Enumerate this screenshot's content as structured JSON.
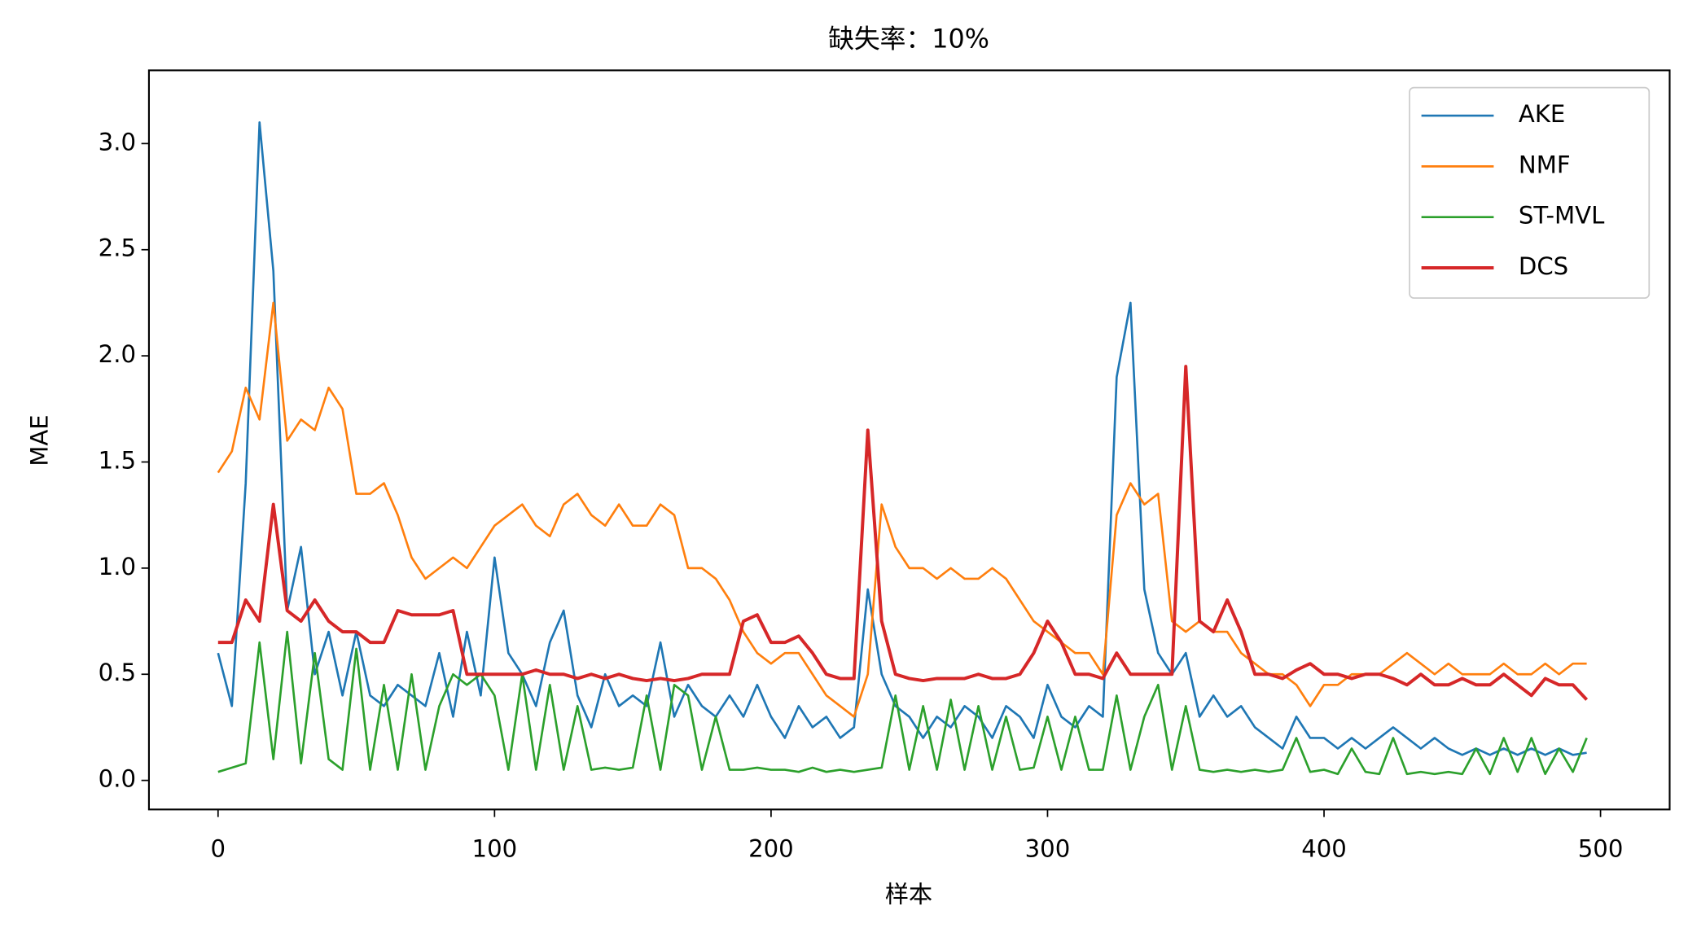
{
  "chart_data": {
    "type": "line",
    "title": "缺失率：10%",
    "x_label": "样本",
    "y_label": "MAE",
    "x": [
      0,
      5,
      10,
      15,
      20,
      25,
      30,
      35,
      40,
      45,
      50,
      55,
      60,
      65,
      70,
      75,
      80,
      85,
      90,
      95,
      100,
      105,
      110,
      115,
      120,
      125,
      130,
      135,
      140,
      145,
      150,
      155,
      160,
      165,
      170,
      175,
      180,
      185,
      190,
      195,
      200,
      205,
      210,
      215,
      220,
      225,
      230,
      235,
      240,
      245,
      250,
      255,
      260,
      265,
      270,
      275,
      280,
      285,
      290,
      295,
      300,
      305,
      310,
      315,
      320,
      325,
      330,
      335,
      340,
      345,
      350,
      355,
      360,
      365,
      370,
      375,
      380,
      385,
      390,
      395,
      400,
      405,
      410,
      415,
      420,
      425,
      430,
      435,
      440,
      445,
      450,
      455,
      460,
      465,
      470,
      475,
      480,
      485,
      490,
      495
    ],
    "series": [
      {
        "name": "AKE",
        "color": "#1f77b4",
        "linewidth": 2,
        "values": [
          0.6,
          0.35,
          1.4,
          3.1,
          2.4,
          0.8,
          1.1,
          0.5,
          0.7,
          0.4,
          0.7,
          0.4,
          0.35,
          0.45,
          0.4,
          0.35,
          0.6,
          0.3,
          0.7,
          0.4,
          1.05,
          0.6,
          0.5,
          0.35,
          0.65,
          0.8,
          0.4,
          0.25,
          0.5,
          0.35,
          0.4,
          0.35,
          0.65,
          0.3,
          0.45,
          0.35,
          0.3,
          0.4,
          0.3,
          0.45,
          0.3,
          0.2,
          0.35,
          0.25,
          0.3,
          0.2,
          0.25,
          0.9,
          0.5,
          0.35,
          0.3,
          0.2,
          0.3,
          0.25,
          0.35,
          0.3,
          0.2,
          0.35,
          0.3,
          0.2,
          0.45,
          0.3,
          0.25,
          0.35,
          0.3,
          1.9,
          2.25,
          0.9,
          0.6,
          0.5,
          0.6,
          0.3,
          0.4,
          0.3,
          0.35,
          0.25,
          0.2,
          0.15,
          0.3,
          0.2,
          0.2,
          0.15,
          0.2,
          0.15,
          0.2,
          0.25,
          0.2,
          0.15,
          0.2,
          0.15,
          0.12,
          0.15,
          0.12,
          0.15,
          0.12,
          0.15,
          0.12,
          0.15,
          0.12,
          0.13
        ]
      },
      {
        "name": "NMF",
        "color": "#ff7f0e",
        "linewidth": 2,
        "values": [
          1.45,
          1.55,
          1.85,
          1.7,
          2.25,
          1.6,
          1.7,
          1.65,
          1.85,
          1.75,
          1.35,
          1.35,
          1.4,
          1.25,
          1.05,
          0.95,
          1.0,
          1.05,
          1.0,
          1.1,
          1.2,
          1.25,
          1.3,
          1.2,
          1.15,
          1.3,
          1.35,
          1.25,
          1.2,
          1.3,
          1.2,
          1.2,
          1.3,
          1.25,
          1.0,
          1.0,
          0.95,
          0.85,
          0.7,
          0.6,
          0.55,
          0.6,
          0.6,
          0.5,
          0.4,
          0.35,
          0.3,
          0.5,
          1.3,
          1.1,
          1.0,
          1.0,
          0.95,
          1.0,
          0.95,
          0.95,
          1.0,
          0.95,
          0.85,
          0.75,
          0.7,
          0.65,
          0.6,
          0.6,
          0.5,
          1.25,
          1.4,
          1.3,
          1.35,
          0.75,
          0.7,
          0.75,
          0.7,
          0.7,
          0.6,
          0.55,
          0.5,
          0.5,
          0.45,
          0.35,
          0.45,
          0.45,
          0.5,
          0.5,
          0.5,
          0.55,
          0.6,
          0.55,
          0.5,
          0.55,
          0.5,
          0.5,
          0.5,
          0.55,
          0.5,
          0.5,
          0.55,
          0.5,
          0.55,
          0.55
        ]
      },
      {
        "name": "ST-MVL",
        "color": "#2ca02c",
        "linewidth": 2,
        "values": [
          0.04,
          0.06,
          0.08,
          0.65,
          0.1,
          0.7,
          0.08,
          0.6,
          0.1,
          0.05,
          0.62,
          0.05,
          0.45,
          0.05,
          0.5,
          0.05,
          0.35,
          0.5,
          0.45,
          0.5,
          0.4,
          0.05,
          0.5,
          0.05,
          0.45,
          0.05,
          0.35,
          0.05,
          0.06,
          0.05,
          0.06,
          0.4,
          0.05,
          0.45,
          0.4,
          0.05,
          0.3,
          0.05,
          0.05,
          0.06,
          0.05,
          0.05,
          0.04,
          0.06,
          0.04,
          0.05,
          0.04,
          0.05,
          0.06,
          0.4,
          0.05,
          0.35,
          0.05,
          0.38,
          0.05,
          0.35,
          0.05,
          0.3,
          0.05,
          0.06,
          0.3,
          0.05,
          0.3,
          0.05,
          0.05,
          0.4,
          0.05,
          0.3,
          0.45,
          0.05,
          0.35,
          0.05,
          0.04,
          0.05,
          0.04,
          0.05,
          0.04,
          0.05,
          0.2,
          0.04,
          0.05,
          0.03,
          0.15,
          0.04,
          0.03,
          0.2,
          0.03,
          0.04,
          0.03,
          0.04,
          0.03,
          0.15,
          0.03,
          0.2,
          0.04,
          0.2,
          0.03,
          0.15,
          0.04,
          0.2
        ]
      },
      {
        "name": "DCS",
        "color": "#d62728",
        "linewidth": 3,
        "values": [
          0.65,
          0.65,
          0.85,
          0.75,
          1.3,
          0.8,
          0.75,
          0.85,
          0.75,
          0.7,
          0.7,
          0.65,
          0.65,
          0.8,
          0.78,
          0.78,
          0.78,
          0.8,
          0.5,
          0.5,
          0.5,
          0.5,
          0.5,
          0.52,
          0.5,
          0.5,
          0.48,
          0.5,
          0.48,
          0.5,
          0.48,
          0.47,
          0.48,
          0.47,
          0.48,
          0.5,
          0.5,
          0.5,
          0.75,
          0.78,
          0.65,
          0.65,
          0.68,
          0.6,
          0.5,
          0.48,
          0.48,
          1.65,
          0.75,
          0.5,
          0.48,
          0.47,
          0.48,
          0.48,
          0.48,
          0.5,
          0.48,
          0.48,
          0.5,
          0.6,
          0.75,
          0.65,
          0.5,
          0.5,
          0.48,
          0.6,
          0.5,
          0.5,
          0.5,
          0.5,
          1.95,
          0.75,
          0.7,
          0.85,
          0.7,
          0.5,
          0.5,
          0.48,
          0.52,
          0.55,
          0.5,
          0.5,
          0.48,
          0.5,
          0.5,
          0.48,
          0.45,
          0.5,
          0.45,
          0.45,
          0.48,
          0.45,
          0.45,
          0.5,
          0.45,
          0.4,
          0.48,
          0.45,
          0.45,
          0.38
        ]
      }
    ],
    "xlim": [
      -25,
      525
    ],
    "ylim": [
      -0.137,
      3.345
    ],
    "xticks": [
      0,
      100,
      200,
      300,
      400,
      500
    ],
    "yticks": [
      {
        "value": 0,
        "label": "0.0"
      },
      0.5,
      {
        "value": 1,
        "label": "1.0"
      },
      1.5,
      {
        "value": 2,
        "label": "2.0"
      },
      2.5,
      {
        "value": 3,
        "label": "3.0"
      }
    ],
    "legend": "upper right",
    "grid": false
  }
}
